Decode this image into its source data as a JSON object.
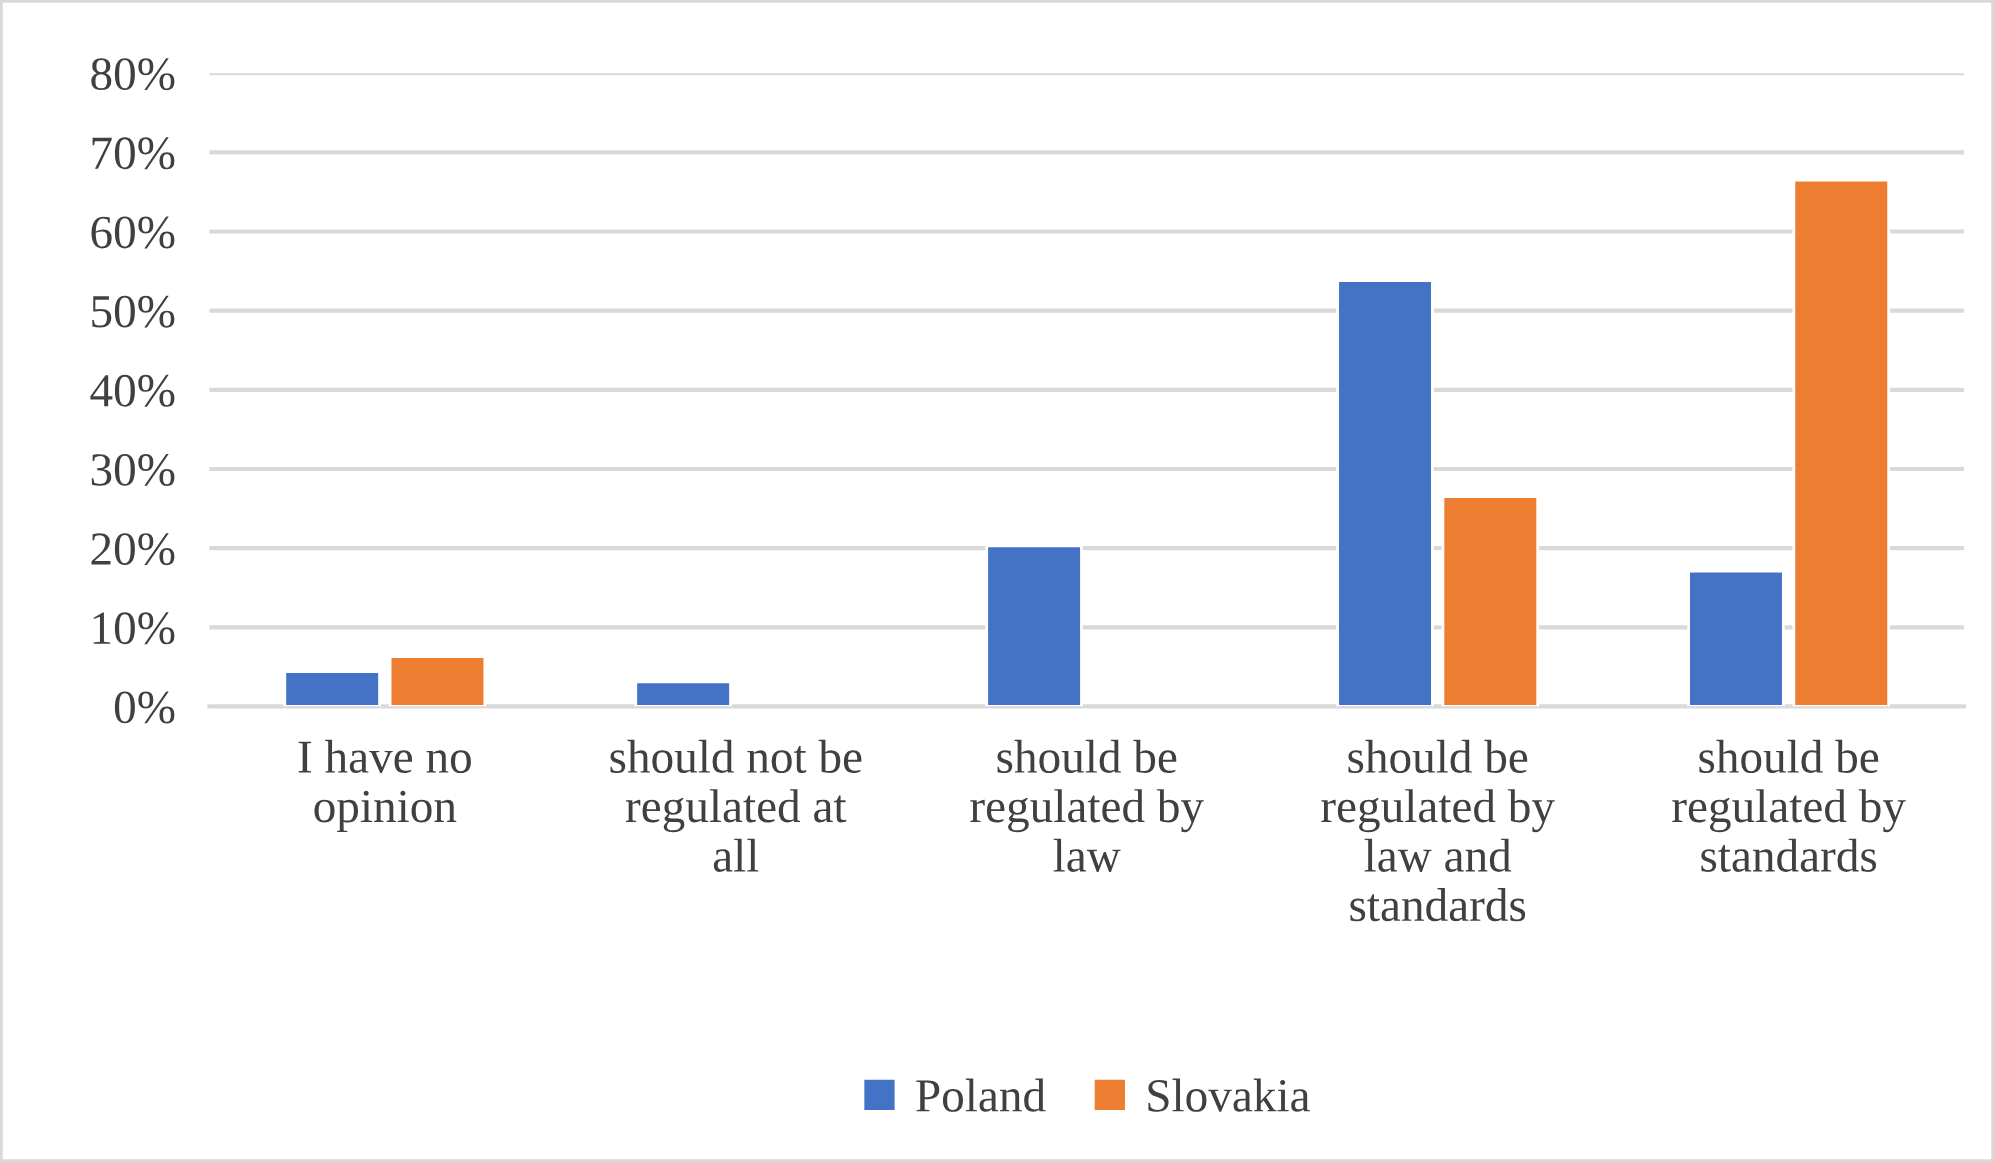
{
  "chart_data": {
    "type": "bar",
    "categories": [
      "I have no opinion",
      "should not be regulated at all",
      "should be regulated by law",
      "should be regulated by law and standards",
      "should be regulated by standards"
    ],
    "series": [
      {
        "name": "Poland",
        "color": "#4472c4",
        "values": [
          4.4,
          3.1,
          20.3,
          53.8,
          17.1
        ]
      },
      {
        "name": "Slovakia",
        "color": "#ed7d31",
        "values": [
          6.3,
          null,
          null,
          26.5,
          66.5
        ]
      }
    ],
    "ylim": [
      0,
      80
    ],
    "yticks": [
      {
        "value": 0,
        "label": "0%"
      },
      {
        "value": 10,
        "label": "10%"
      },
      {
        "value": 20,
        "label": "20%"
      },
      {
        "value": 30,
        "label": "30%"
      },
      {
        "value": 40,
        "label": "40%"
      },
      {
        "value": 50,
        "label": "50%"
      },
      {
        "value": 60,
        "label": "60%"
      },
      {
        "value": 70,
        "label": "70%"
      },
      {
        "value": 80,
        "label": "80%"
      }
    ],
    "grid": "y",
    "legend": "bottom"
  }
}
